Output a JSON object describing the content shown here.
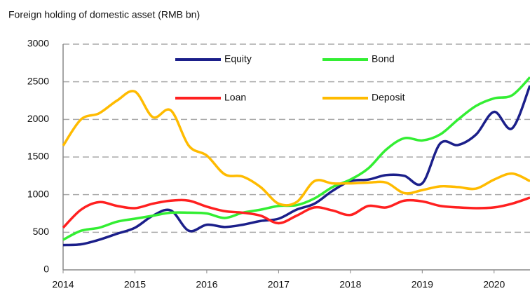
{
  "chart_data": {
    "type": "line",
    "title": "Foreign holding of domestic asset (RMB bn)",
    "x": [
      2014,
      2014.25,
      2014.5,
      2014.75,
      2015,
      2015.25,
      2015.5,
      2015.75,
      2016,
      2016.25,
      2016.5,
      2016.75,
      2017,
      2017.25,
      2017.5,
      2017.75,
      2018,
      2018.25,
      2018.5,
      2018.75,
      2019,
      2019.25,
      2019.5,
      2019.75,
      2020,
      2020.25,
      2020.5
    ],
    "series": [
      {
        "name": "Equity",
        "color": "#1b1f8a",
        "values": [
          330,
          340,
          400,
          480,
          560,
          720,
          790,
          520,
          600,
          570,
          600,
          650,
          680,
          800,
          880,
          1050,
          1180,
          1200,
          1260,
          1250,
          1150,
          1680,
          1660,
          1800,
          2100,
          1880,
          2450
        ]
      },
      {
        "name": "Bond",
        "color": "#33ee33",
        "values": [
          400,
          520,
          560,
          640,
          680,
          720,
          760,
          760,
          750,
          690,
          760,
          800,
          850,
          860,
          950,
          1100,
          1200,
          1350,
          1600,
          1750,
          1720,
          1800,
          2000,
          2180,
          2280,
          2320,
          2560
        ]
      },
      {
        "name": "Loan",
        "color": "#ff2020",
        "values": [
          560,
          800,
          900,
          850,
          820,
          880,
          920,
          920,
          840,
          780,
          760,
          720,
          620,
          720,
          830,
          790,
          730,
          850,
          830,
          920,
          910,
          850,
          830,
          820,
          830,
          880,
          960
        ]
      },
      {
        "name": "Deposit",
        "color": "#ffbb00",
        "values": [
          1650,
          2000,
          2080,
          2250,
          2370,
          2030,
          2120,
          1650,
          1520,
          1270,
          1240,
          1100,
          880,
          900,
          1180,
          1150,
          1150,
          1160,
          1160,
          1020,
          1060,
          1110,
          1100,
          1080,
          1200,
          1280,
          1180
        ]
      }
    ],
    "xlim": [
      2014,
      2020.5
    ],
    "xticks": [
      2014,
      2015,
      2016,
      2017,
      2018,
      2019,
      2020
    ],
    "ylim": [
      0,
      3000
    ],
    "yticks": [
      0,
      500,
      1000,
      1500,
      2000,
      2500,
      3000
    ],
    "grid": true
  }
}
